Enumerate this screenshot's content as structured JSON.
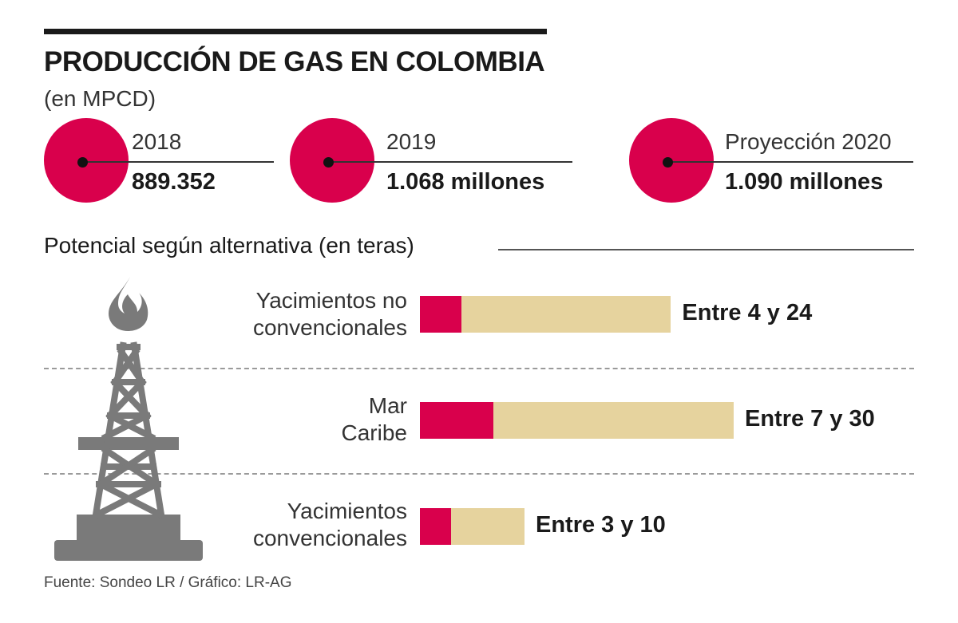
{
  "title": "PRODUCCIÓN DE GAS EN COLOMBIA",
  "subtitle": "(en MPCD)",
  "colors": {
    "accent": "#d9004c",
    "range": "#e6d39e",
    "icon": "#7a7a7a"
  },
  "stats": [
    {
      "year": "2018",
      "value": "889.352"
    },
    {
      "year": "2019",
      "value": "1.068 millones"
    },
    {
      "year": "Proyección 2020",
      "value": "1.090 millones"
    }
  ],
  "section_title": "Potencial según alternativa (en teras)",
  "chart_data": {
    "type": "bar",
    "orientation": "horizontal",
    "stacked_range": true,
    "categories": [
      "Yacimientos no\nconvencionales",
      "Mar\nCaribe",
      "Yacimientos\nconvencionales"
    ],
    "min": [
      4,
      7,
      3
    ],
    "max": [
      24,
      30,
      10
    ],
    "value_labels": [
      "Entre 4 y 24",
      "Entre 7 y 30",
      "Entre 3 y 10"
    ]
  },
  "source": "Fuente: Sondeo LR / Gráfico: LR-AG",
  "icon": "gas-rig-icon"
}
